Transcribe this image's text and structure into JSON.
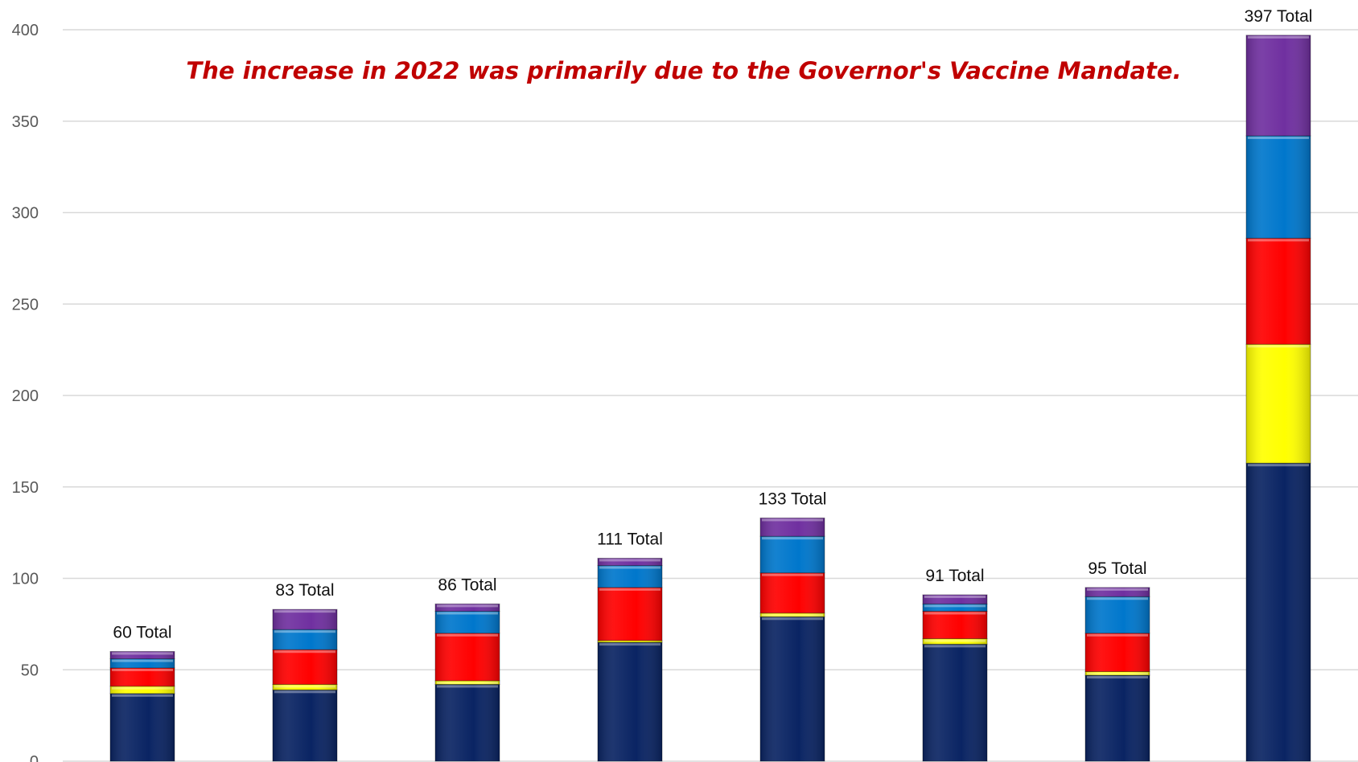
{
  "chart_data": {
    "type": "bar",
    "stacked": true,
    "title": "",
    "xlabel": "",
    "ylabel": "",
    "ylim": [
      0,
      400
    ],
    "yticks": [
      0,
      50,
      100,
      150,
      200,
      250,
      300,
      350,
      400
    ],
    "grid": true,
    "legend": "none",
    "annotation": "The increase in 2022 was primarily due to the Governor's Vaccine Mandate.",
    "totals": [
      60,
      83,
      86,
      111,
      133,
      91,
      95,
      397
    ],
    "total_labels": [
      "60 Total",
      "83 Total",
      "86 Total",
      "111 Total",
      "133 Total",
      "91 Total",
      "95 Total",
      "397 Total"
    ],
    "series": [
      {
        "color": "#0a2463",
        "values": [
          37,
          39,
          42,
          65,
          79,
          64,
          47,
          163
        ]
      },
      {
        "color": "#ffff00",
        "values": [
          4,
          3,
          2,
          1,
          2,
          3,
          2,
          65
        ]
      },
      {
        "color": "#ff0000",
        "values": [
          10,
          19,
          26,
          29,
          22,
          15,
          21,
          58
        ]
      },
      {
        "color": "#0077cc",
        "values": [
          5,
          11,
          12,
          12,
          20,
          4,
          20,
          56
        ]
      },
      {
        "color": "#7030a0",
        "values": [
          4,
          11,
          4,
          4,
          10,
          5,
          5,
          55
        ]
      }
    ]
  }
}
